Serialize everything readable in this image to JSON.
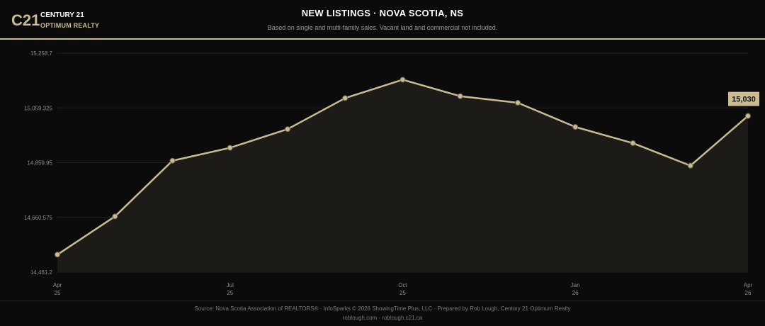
{
  "header": {
    "logo_mark": "C21",
    "logo_line1": "CENTURY 21",
    "logo_line2": "OPTIMUM REALTY",
    "title": "NEW LISTINGS  ·  NOVA SCOTIA, NS",
    "subtitle": "Based on single and multi-family sales. Vacant land and commercial not included."
  },
  "colors": {
    "background": "#0b0b0b",
    "accent": "#c9bc93",
    "line": "#c9bc93",
    "area_fill": "#1c1b18",
    "grid": "#222222"
  },
  "chart_data": {
    "type": "line",
    "title": "NEW LISTINGS  ·  NOVA SCOTIA, NS",
    "subtitle": "Based on single and multi-family sales. Vacant land and commercial not included.",
    "xlabel": "",
    "ylabel": "",
    "x": [
      "2025-04",
      "2025-05",
      "2025-06",
      "2025-07",
      "2025-08",
      "2025-09",
      "2025-10",
      "2025-11",
      "2025-12",
      "2026-01",
      "2026-02",
      "2026-03",
      "2026-04"
    ],
    "values": [
      14525,
      14664,
      14867,
      14914,
      14982,
      15095,
      15162,
      15102,
      15078,
      14990,
      14931,
      14849,
      15030
    ],
    "ylim": [
      14461.2,
      15258.7
    ],
    "y_ticks": [
      "15,258.7",
      "15,059.325",
      "14,859.95",
      "14,660.575",
      "14,461.2"
    ],
    "y_tick_values": [
      15258.7,
      15059.325,
      14859.95,
      14660.575,
      14461.2
    ],
    "x_ticks": [
      {
        "month": "Apr",
        "year": "25",
        "index": 0
      },
      {
        "month": "Jul",
        "year": "25",
        "index": 3
      },
      {
        "month": "Oct",
        "year": "25",
        "index": 6
      },
      {
        "month": "Jan",
        "year": "26",
        "index": 9
      },
      {
        "month": "Apr",
        "year": "26",
        "index": 12
      }
    ],
    "last_value_label": "15,030",
    "grid": true,
    "area_fill": true
  },
  "footer": {
    "line1": "Source: Nova Scotia Association of REALTORS® · InfoSparks © 2026 ShowingTime Plus, LLC · Prepared by Rob Lough, Century 21 Optimum Realty",
    "line2": "roblough.com · roblough.c21.ca"
  }
}
